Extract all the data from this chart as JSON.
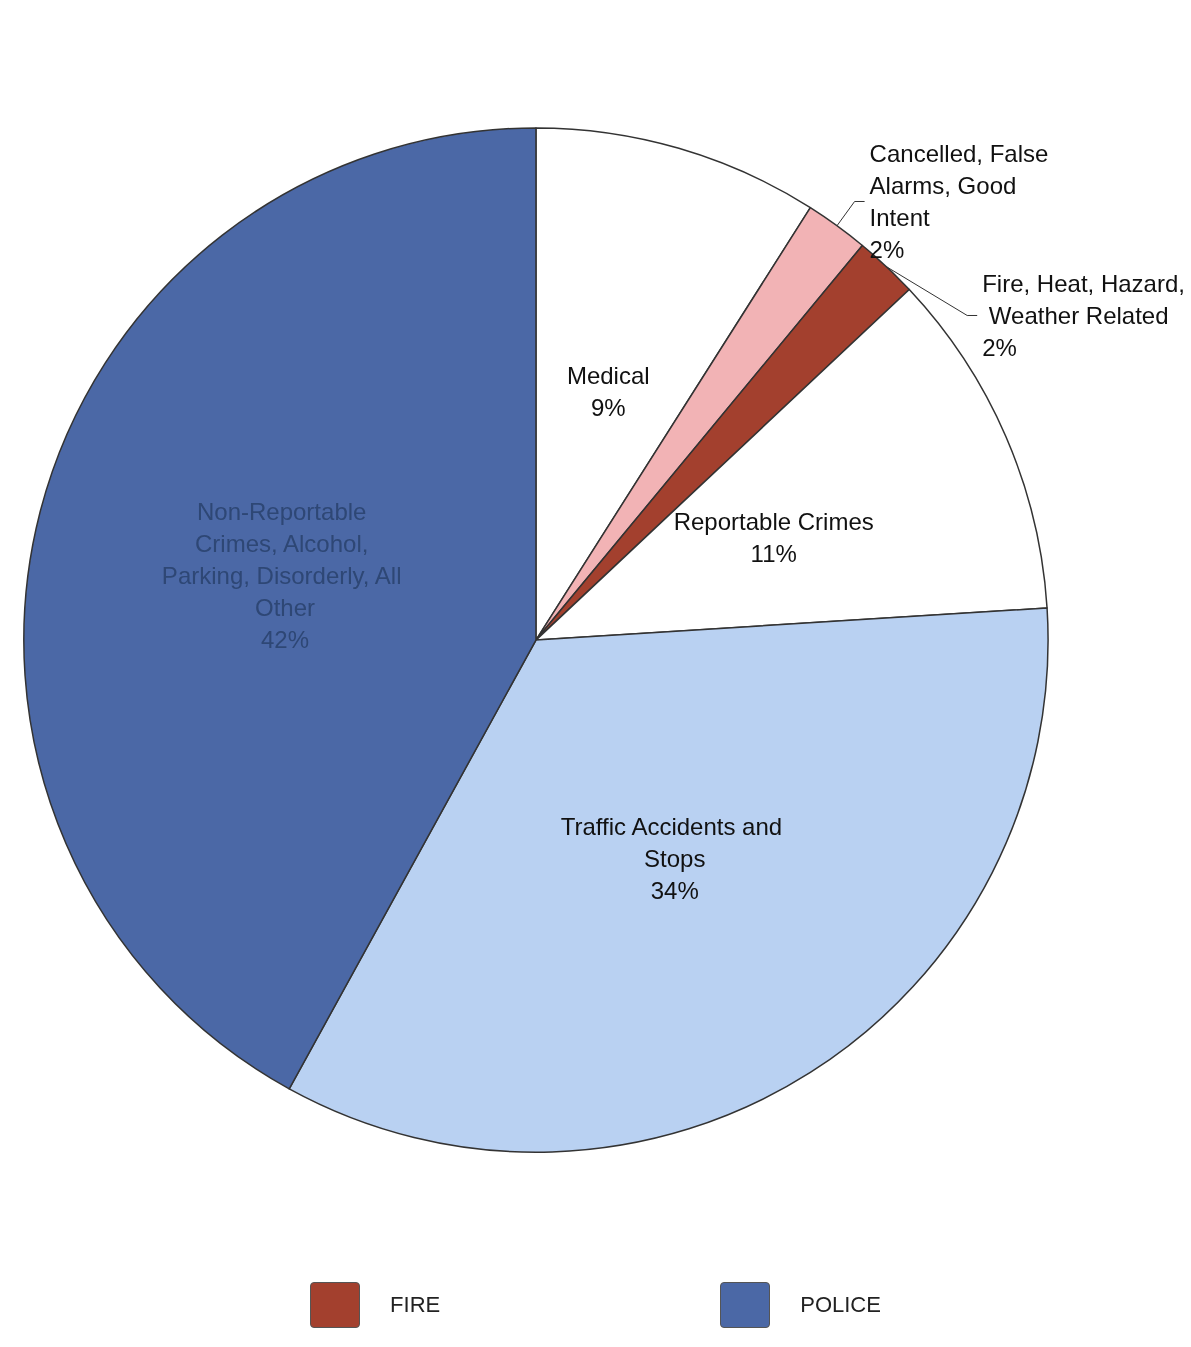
{
  "chart_data": {
    "type": "pie",
    "categories": [
      "Medical",
      "Cancelled, False Alarms, Good Intent",
      "Fire, Heat, Hazard, Weather Related",
      "Reportable Crimes",
      "Traffic Accidents and Stops",
      "Non-Reportable Crimes, Alcohol, Parking, Disorderly, All Other"
    ],
    "values": [
      9,
      2,
      2,
      11,
      34,
      42
    ],
    "value_labels": [
      "9%",
      "2%",
      "2%",
      "11%",
      "34%",
      "42%"
    ],
    "colors": [
      "#ffffff",
      "#f2b3b5",
      "#a3402e",
      "#ffffff",
      "#b9d1f2",
      "#4b68a6"
    ],
    "annotations": [
      "FIRE",
      "POLICE"
    ]
  }
}
